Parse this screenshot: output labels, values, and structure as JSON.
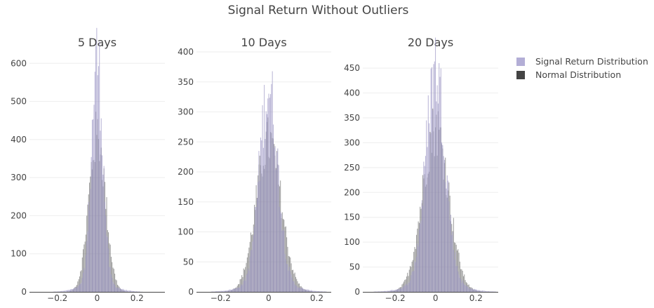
{
  "title": "Signal Return Without Outliers",
  "colors": {
    "signal": "#9a94c4",
    "normal": "#444444",
    "grid": "#eeeeee",
    "axis": "#444444",
    "text": "#444444"
  },
  "legend": {
    "placement": "right",
    "items": [
      {
        "label": "Signal Return Distribution",
        "color": "#b3aed6"
      },
      {
        "label": "Normal Distribution",
        "color": "#444444"
      }
    ]
  },
  "chart_data": [
    {
      "type": "histogram",
      "title": "5 Days",
      "xlim": [
        -0.34,
        0.34
      ],
      "ylim": [
        0,
        630
      ],
      "xticks": [
        -0.2,
        0,
        0.2
      ],
      "xtick_labels": [
        "−0.2",
        "0",
        "0.2"
      ],
      "yticks": [
        0,
        100,
        200,
        300,
        400,
        500,
        600
      ],
      "series": [
        {
          "name": "Signal Return Distribution",
          "center": 0.0,
          "peak": 615,
          "sigma": 0.028,
          "tail_sigma": 0.08,
          "tail_weight": 0.04
        },
        {
          "name": "Normal Distribution",
          "center": 0.0,
          "peak": 410,
          "sigma": 0.042
        }
      ]
    },
    {
      "type": "histogram",
      "title": "10 Days",
      "xlim": [
        -0.3,
        0.26
      ],
      "ylim": [
        0,
        400
      ],
      "xticks": [
        -0.2,
        0,
        0.2
      ],
      "xtick_labels": [
        "−0.2",
        "0",
        "0.2"
      ],
      "yticks": [
        0,
        50,
        100,
        150,
        200,
        250,
        300,
        350,
        400
      ],
      "series": [
        {
          "name": "Signal Return Distribution",
          "center": 0.0,
          "peak": 340,
          "sigma": 0.038,
          "tail_sigma": 0.09,
          "tail_weight": 0.05
        },
        {
          "name": "Normal Distribution",
          "center": 0.0,
          "peak": 250,
          "sigma": 0.052
        }
      ]
    },
    {
      "type": "histogram",
      "title": "20 Days",
      "xlim": [
        -0.36,
        0.31
      ],
      "ylim": [
        0,
        460
      ],
      "xticks": [
        -0.2,
        0,
        0.2
      ],
      "xtick_labels": [
        "−0.2",
        "0",
        "0.2"
      ],
      "yticks": [
        0,
        50,
        100,
        150,
        200,
        250,
        300,
        350,
        400,
        450
      ],
      "series": [
        {
          "name": "Signal Return Distribution",
          "center": 0.0,
          "peak": 450,
          "sigma": 0.048,
          "tail_sigma": 0.11,
          "tail_weight": 0.05
        },
        {
          "name": "Normal Distribution",
          "center": 0.0,
          "peak": 330,
          "sigma": 0.065
        }
      ]
    }
  ]
}
